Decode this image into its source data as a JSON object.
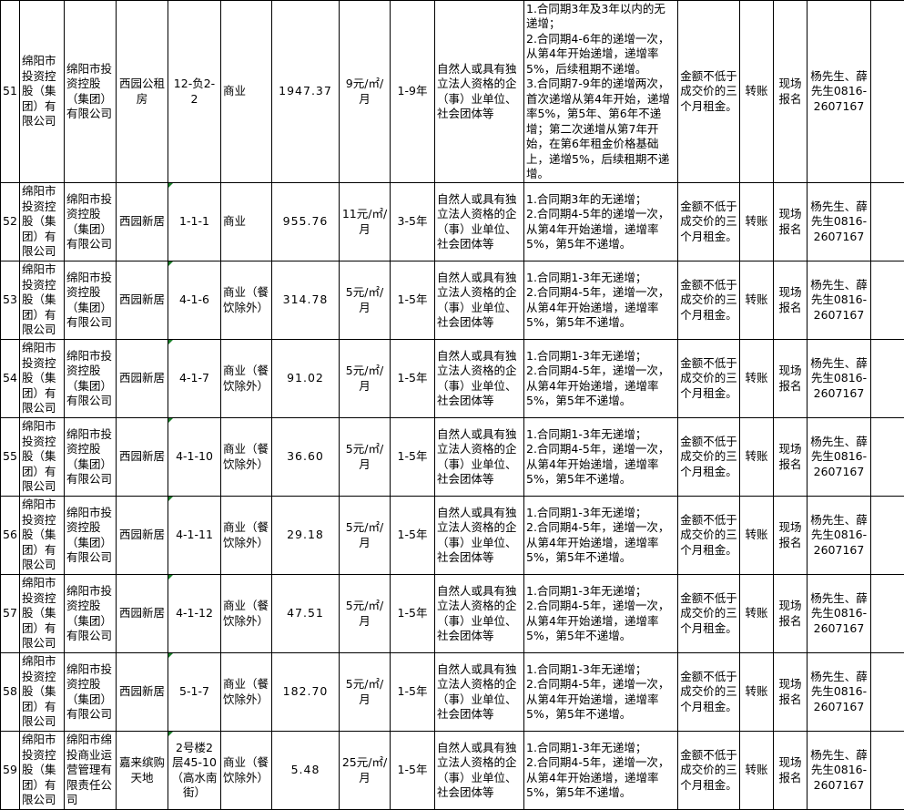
{
  "rows": [
    {
      "no": "51",
      "owner": "绵阳市投资控股（集团）有限公司",
      "operator": "绵阳市投资控股（集团）有限公司",
      "project": "西园公租房",
      "unit": "12-负2-2",
      "use": "商业",
      "area": "1947.37",
      "price": "9元/㎡/月",
      "term": "1-9年",
      "eligibility": "自然人或具有独立法人资格的企（事）业单位、社会团体等",
      "increase": "1.合同期3年及3年以内的无递增；\n2.合同期4-6年的递增一次，从第4年开始递增，递增率5%，后续租期不递增。\n3.合同期7-9年的递增两次，首次递增从第4年开始，递增率5%，第5年、第6年不递增；第二次递增从第7年开始，在第6年租金价格基础上，递增5%，后续租期不递增。",
      "deposit": "金额不低于成交价的三个月租金。",
      "payment": "转账",
      "registration": "现场报名",
      "contact": "杨先生、薛先生0816-2607167",
      "extra": ""
    },
    {
      "no": "52",
      "owner": "绵阳市投资控股（集团）有限公司",
      "operator": "绵阳市投资控股（集团）有限公司",
      "project": "西园新居",
      "unit": "1-1-1",
      "use": "商业",
      "area": "955.76",
      "price": "11元/㎡/月",
      "term": "3-5年",
      "eligibility": "自然人或具有独立法人资格的企（事）业单位、社会团体等",
      "increase": "1.合同期3年的无递增；\n2.合同期4-5年的递增一次，从第4年开始递增，递增率5%，第5年不递增。",
      "deposit": "金额不低于成交价的三个月租金。",
      "payment": "转账",
      "registration": "现场报名",
      "contact": "杨先生、薛先生0816-2607167",
      "extra": ""
    },
    {
      "no": "53",
      "owner": "绵阳市投资控股（集团）有限公司",
      "operator": "绵阳市投资控股（集团）有限公司",
      "project": "西园新居",
      "unit": "4-1-6",
      "use": "商业（餐饮除外）",
      "area": "314.78",
      "price": "5元/㎡/月",
      "term": "1-5年",
      "eligibility": "自然人或具有独立法人资格的企（事）业单位、社会团体等",
      "increase": "1.合同期1-3年无递增；\n2.合同期4-5年，递增一次，从第4年开始递增，递增率5%，第5年不递增。",
      "deposit": "金额不低于成交价的三个月租金。",
      "payment": "转账",
      "registration": "现场报名",
      "contact": "杨先生、薛先生0816-2607167",
      "extra": ""
    },
    {
      "no": "54",
      "owner": "绵阳市投资控股（集团）有限公司",
      "operator": "绵阳市投资控股（集团）有限公司",
      "project": "西园新居",
      "unit": "4-1-7",
      "use": "商业（餐饮除外）",
      "area": "91.02",
      "price": "5元/㎡/月",
      "term": "1-5年",
      "eligibility": "自然人或具有独立法人资格的企（事）业单位、社会团体等",
      "increase": "1.合同期1-3年无递增；\n2.合同期4-5年，递增一次，从第4年开始递增，递增率5%，第5年不递增。",
      "deposit": "金额不低于成交价的三个月租金。",
      "payment": "转账",
      "registration": "现场报名",
      "contact": "杨先生、薛先生0816-2607167",
      "extra": ""
    },
    {
      "no": "55",
      "owner": "绵阳市投资控股（集团）有限公司",
      "operator": "绵阳市投资控股（集团）有限公司",
      "project": "西园新居",
      "unit": "4-1-10",
      "use": "商业（餐饮除外）",
      "area": "36.60",
      "price": "5元/㎡/月",
      "term": "1-5年",
      "eligibility": "自然人或具有独立法人资格的企（事）业单位、社会团体等",
      "increase": "1.合同期1-3年无递增；\n2.合同期4-5年，递增一次，从第4年开始递增，递增率5%，第5年不递增。",
      "deposit": "金额不低于成交价的三个月租金。",
      "payment": "转账",
      "registration": "现场报名",
      "contact": "杨先生、薛先生0816-2607167",
      "extra": ""
    },
    {
      "no": "56",
      "owner": "绵阳市投资控股（集团）有限公司",
      "operator": "绵阳市投资控股（集团）有限公司",
      "project": "西园新居",
      "unit": "4-1-11",
      "use": "商业（餐饮除外）",
      "area": "29.18",
      "price": "5元/㎡/月",
      "term": "1-5年",
      "eligibility": "自然人或具有独立法人资格的企（事）业单位、社会团体等",
      "increase": "1.合同期1-3年无递增；\n2.合同期4-5年，递增一次，从第4年开始递增，递增率5%，第5年不递增。",
      "deposit": "金额不低于成交价的三个月租金。",
      "payment": "转账",
      "registration": "现场报名",
      "contact": "杨先生、薛先生0816-2607167",
      "extra": ""
    },
    {
      "no": "57",
      "owner": "绵阳市投资控股（集团）有限公司",
      "operator": "绵阳市投资控股（集团）有限公司",
      "project": "西园新居",
      "unit": "4-1-12",
      "use": "商业（餐饮除外）",
      "area": "47.51",
      "price": "5元/㎡/月",
      "term": "1-5年",
      "eligibility": "自然人或具有独立法人资格的企（事）业单位、社会团体等",
      "increase": "1.合同期1-3年无递增；\n2.合同期4-5年，递增一次，从第4年开始递增，递增率5%，第5年不递增。",
      "deposit": "金额不低于成交价的三个月租金。",
      "payment": "转账",
      "registration": "现场报名",
      "contact": "杨先生、薛先生0816-2607167",
      "extra": ""
    },
    {
      "no": "58",
      "owner": "绵阳市投资控股（集团）有限公司",
      "operator": "绵阳市投资控股（集团）有限公司",
      "project": "西园新居",
      "unit": "5-1-7",
      "use": "商业（餐饮除外）",
      "area": "182.70",
      "price": "5元/㎡/月",
      "term": "1-5年",
      "eligibility": "自然人或具有独立法人资格的企（事）业单位、社会团体等",
      "increase": "1.合同期1-3年无递增；\n2.合同期4-5年，递增一次，从第4年开始递增，递增率5%，第5年不递增。",
      "deposit": "金额不低于成交价的三个月租金。",
      "payment": "转账",
      "registration": "现场报名",
      "contact": "杨先生、薛先生0816-2607167",
      "extra": ""
    },
    {
      "no": "59",
      "owner": "绵阳市投资控股（集团）有限公司",
      "operator": "绵阳市绵投商业运营管理有限责任公司",
      "project": "嘉来缤购天地",
      "unit": "2号楼2层45-10（高水南街）",
      "use": "商业（餐饮除外）",
      "area": "5.48",
      "price": "25元/㎡/月",
      "term": "1-5年",
      "eligibility": "自然人或具有独立法人资格的企（事）业单位、社会团体等",
      "increase": "1.合同期1-3年无递增；\n2.合同期4-5年，递增一次，从第4年开始递增，递增率5%，第5年不递增。",
      "deposit": "金额不低于成交价的三个月租金。",
      "payment": "转账",
      "registration": "现场报名",
      "contact": "杨先生、薛先生0816-2607167",
      "extra": ""
    }
  ],
  "colors": {
    "border": "#000000",
    "cell_marker": "#1a7f2a"
  }
}
